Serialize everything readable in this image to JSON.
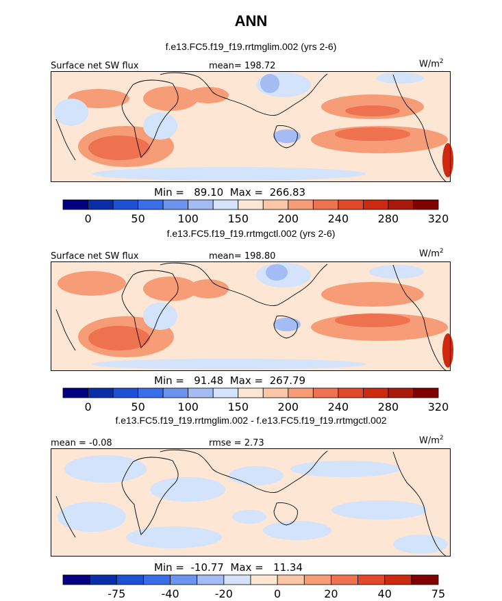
{
  "page_title": "ANN",
  "panels": [
    {
      "case_title": "f.e13.FC5.f19_f19.rrtmglim.002 (yrs 2-6)",
      "left_label": "Surface net SW flux",
      "center_label": "mean= 198.72",
      "units": "W/m",
      "units_sup": "2",
      "minmax": "Min =   89.10  Max =  266.83",
      "colorbar": {
        "ticks": [
          "0",
          "50",
          "100",
          "150",
          "200",
          "240",
          "280",
          "320"
        ],
        "colors": [
          "#000080",
          "#0a2ea8",
          "#1e50d4",
          "#3a6ee8",
          "#6b93ef",
          "#a4bcf3",
          "#d2e3fb",
          "#fde6d3",
          "#fbc6a6",
          "#f69d78",
          "#ee724f",
          "#e2482a",
          "#cc2a10",
          "#a81a0c",
          "#800000"
        ]
      }
    },
    {
      "case_title": "f.e13.FC5.f19_f19.rrtmgctl.002 (yrs 2-6)",
      "left_label": "Surface net SW flux",
      "center_label": "mean= 198.80",
      "units": "W/m",
      "units_sup": "2",
      "minmax": "Min =   91.48  Max =  267.79",
      "colorbar": {
        "ticks": [
          "0",
          "50",
          "100",
          "150",
          "200",
          "240",
          "280",
          "320"
        ],
        "colors": [
          "#000080",
          "#0a2ea8",
          "#1e50d4",
          "#3a6ee8",
          "#6b93ef",
          "#a4bcf3",
          "#d2e3fb",
          "#fde6d3",
          "#fbc6a6",
          "#f69d78",
          "#ee724f",
          "#e2482a",
          "#cc2a10",
          "#a81a0c",
          "#800000"
        ]
      }
    },
    {
      "case_title": "f.e13.FC5.f19_f19.rrtmglim.002 - f.e13.FC5.f19_f19.rrtmgctl.002",
      "left_label": "mean =  -0.08",
      "center_label": "rmse =   2.73",
      "units": "W/m",
      "units_sup": "2",
      "minmax": "Min =  -10.77  Max =   11.34",
      "colorbar": {
        "ticks": [
          "-75",
          "-40",
          "-20",
          "0",
          "20",
          "40",
          "75"
        ],
        "colors": [
          "#000080",
          "#0a2ea8",
          "#1e50d4",
          "#3a6ee8",
          "#6b93ef",
          "#a4bcf3",
          "#d2e3fb",
          "#fde6d3",
          "#fbc6a6",
          "#f69d78",
          "#ee724f",
          "#e2482a",
          "#cc2a10",
          "#800000"
        ]
      }
    }
  ],
  "chart_data": [
    {
      "type": "heatmap",
      "title": "Surface net SW flux",
      "mean": 198.72,
      "min": 89.1,
      "max": 266.83,
      "units": "W/m2",
      "colorbar_ticks": [
        0,
        50,
        100,
        150,
        200,
        240,
        280,
        320
      ]
    },
    {
      "type": "heatmap",
      "title": "Surface net SW flux",
      "mean": 198.8,
      "min": 91.48,
      "max": 267.79,
      "units": "W/m2",
      "colorbar_ticks": [
        0,
        50,
        100,
        150,
        200,
        240,
        280,
        320
      ]
    },
    {
      "type": "heatmap",
      "title": "",
      "mean": -0.08,
      "rmse": 2.73,
      "min": -10.77,
      "max": 11.34,
      "units": "W/m2",
      "colorbar_ticks": [
        -75,
        -40,
        -20,
        0,
        20,
        40,
        75
      ]
    }
  ]
}
